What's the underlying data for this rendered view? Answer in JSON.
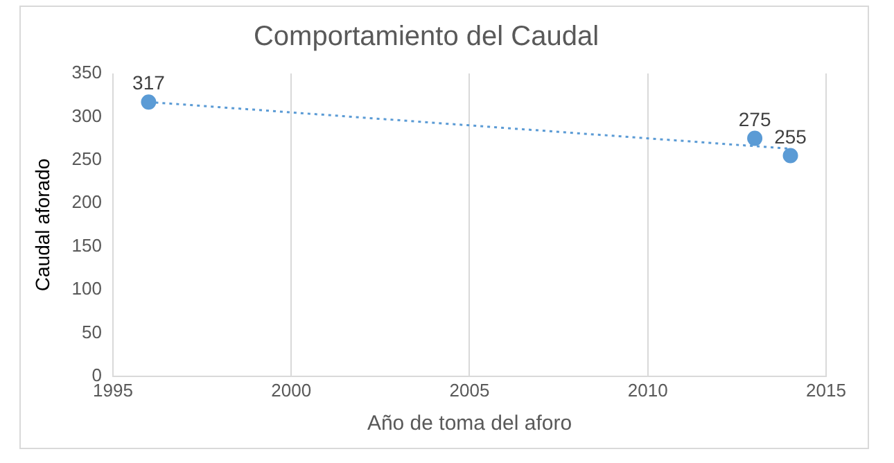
{
  "chart_data": {
    "type": "scatter",
    "title": "Comportamiento del Caudal",
    "xlabel": "Año de toma del aforo",
    "ylabel": "Caudal aforado",
    "x": [
      1996,
      2013,
      2014
    ],
    "series": [
      {
        "type": "scatter",
        "color": "#5b9bd5",
        "values": [
          317,
          275,
          255
        ],
        "value_labels": [
          "317",
          "275",
          "255"
        ],
        "marker": "circle"
      },
      {
        "type": "line",
        "color": "#5b9bd5",
        "x": [
          1996,
          2014
        ],
        "values": [
          317,
          263
        ],
        "line_style": "dotted",
        "marker": "none"
      }
    ],
    "xlim": [
      1995,
      2015
    ],
    "xticks": [
      1995,
      2000,
      2005,
      2010,
      2015
    ],
    "ylim": [
      0,
      350
    ],
    "yticks": [
      0,
      50,
      100,
      150,
      200,
      250,
      300,
      350
    ],
    "grid": "x",
    "legend": false
  }
}
